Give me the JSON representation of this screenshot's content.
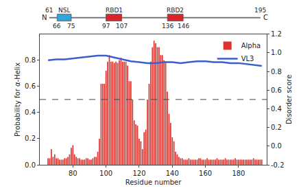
{
  "chart_data": {
    "type": "bar",
    "xlabel": "Residue number",
    "ylabel": "Probability for α-Helix",
    "y2label": "Disorder score",
    "xlim": [
      60,
      197
    ],
    "xticks": [
      80,
      100,
      120,
      140,
      160,
      180
    ],
    "ylim": [
      0,
      1.0
    ],
    "yticks": [
      {
        "value": 0,
        "label": "0.0"
      },
      0.2,
      0.4,
      0.6,
      0.8
    ],
    "y2lim": [
      -0.2,
      1.2
    ],
    "y2ticks": [
      -0.2,
      {
        "value": 0,
        "label": "0.0"
      },
      0.2,
      0.4,
      0.6,
      0.8,
      {
        "value": 1,
        "label": "1.0"
      },
      1.2
    ],
    "grid": false,
    "legend": "top right",
    "series": [
      {
        "name": "Alpha",
        "type": "bar",
        "color": "#e0312b",
        "x": [
          65,
          66,
          67,
          68,
          69,
          70,
          71,
          72,
          73,
          74,
          75,
          76,
          77,
          78,
          79,
          80,
          81,
          82,
          83,
          84,
          85,
          86,
          87,
          88,
          89,
          90,
          91,
          92,
          93,
          94,
          95,
          96,
          97,
          98,
          99,
          100,
          101,
          102,
          103,
          104,
          105,
          106,
          107,
          108,
          109,
          110,
          111,
          112,
          113,
          114,
          115,
          116,
          117,
          118,
          119,
          120,
          121,
          122,
          123,
          124,
          125,
          126,
          127,
          128,
          129,
          130,
          131,
          132,
          133,
          134,
          135,
          136,
          137,
          138,
          139,
          140,
          141,
          142,
          143,
          144,
          145,
          146,
          147,
          148,
          149,
          150,
          151,
          152,
          153,
          154,
          155,
          156,
          157,
          158,
          159,
          160,
          161,
          162,
          163,
          164,
          165,
          166,
          167,
          168,
          169,
          170,
          171,
          172,
          173,
          174,
          175,
          176,
          177,
          178,
          179,
          180,
          181,
          182,
          183,
          184,
          185,
          186,
          187,
          188,
          189,
          190,
          191,
          192,
          193,
          194
        ],
        "values": [
          0.05,
          0.05,
          0.12,
          0.06,
          0.08,
          0.05,
          0.05,
          0.04,
          0.04,
          0.04,
          0.05,
          0.05,
          0.06,
          0.08,
          0.13,
          0.15,
          0.08,
          0.06,
          0.05,
          0.05,
          0.04,
          0.04,
          0.04,
          0.05,
          0.05,
          0.04,
          0.04,
          0.05,
          0.06,
          0.06,
          0.1,
          0.2,
          0.62,
          0.62,
          0.62,
          0.72,
          0.79,
          0.84,
          0.79,
          0.79,
          0.78,
          0.79,
          0.78,
          0.8,
          0.82,
          0.79,
          0.79,
          0.79,
          0.76,
          0.64,
          0.64,
          0.5,
          0.34,
          0.31,
          0.3,
          0.2,
          0.18,
          0.12,
          0.25,
          0.27,
          0.5,
          0.62,
          0.79,
          0.9,
          0.95,
          0.93,
          0.9,
          0.9,
          0.84,
          0.84,
          0.8,
          0.79,
          0.56,
          0.39,
          0.32,
          0.21,
          0.18,
          0.1,
          0.08,
          0.06,
          0.05,
          0.05,
          0.04,
          0.04,
          0.04,
          0.05,
          0.04,
          0.04,
          0.04,
          0.04,
          0.04,
          0.05,
          0.05,
          0.04,
          0.04,
          0.04,
          0.05,
          0.04,
          0.04,
          0.04,
          0.04,
          0.04,
          0.05,
          0.04,
          0.04,
          0.04,
          0.04,
          0.05,
          0.04,
          0.04,
          0.04,
          0.04,
          0.04,
          0.05,
          0.04,
          0.04,
          0.04,
          0.04,
          0.04,
          0.04,
          0.04,
          0.04,
          0.04,
          0.04,
          0.05,
          0.04,
          0.04,
          0.04,
          0.04,
          0.04
        ]
      },
      {
        "name": "VL3",
        "type": "line",
        "color": "#3a5fcd",
        "axis": "y2",
        "x": [
          65,
          70,
          75,
          80,
          85,
          90,
          95,
          100,
          105,
          110,
          115,
          120,
          125,
          130,
          135,
          140,
          145,
          150,
          155,
          160,
          165,
          170,
          175,
          180,
          185,
          190,
          194
        ],
        "values": [
          0.92,
          0.93,
          0.93,
          0.94,
          0.95,
          0.96,
          0.97,
          0.97,
          0.95,
          0.93,
          0.91,
          0.9,
          0.89,
          0.89,
          0.9,
          0.9,
          0.89,
          0.9,
          0.91,
          0.91,
          0.9,
          0.9,
          0.89,
          0.89,
          0.88,
          0.87,
          0.86
        ]
      }
    ],
    "reference_lines": [
      {
        "axis": "y",
        "value": 0.5,
        "line_style": "dashed",
        "color": "#444444"
      }
    ],
    "domain_map": {
      "start": 61,
      "end": 195,
      "start_label": "N",
      "end_label": "C",
      "domains": [
        {
          "label": "NSL",
          "start": 66,
          "end": 75,
          "color": "#2ca6dc"
        },
        {
          "label": "RBD1",
          "start": 97,
          "end": 107,
          "color": "#d9262b"
        },
        {
          "label": "RBD2",
          "start": 136,
          "end": 146,
          "color": "#d9262b"
        }
      ]
    }
  }
}
